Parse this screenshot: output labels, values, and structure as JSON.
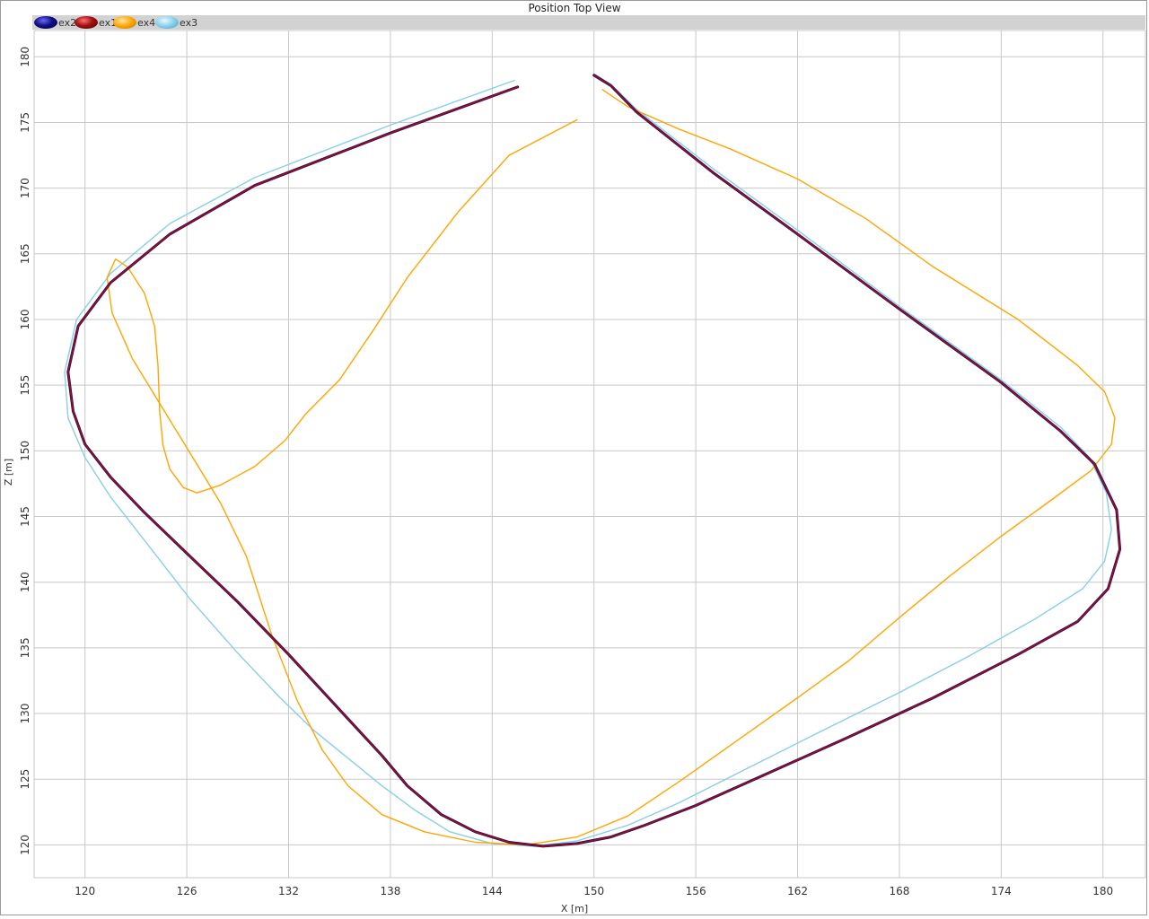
{
  "window": {
    "title": "Position Top View"
  },
  "chart_data": {
    "type": "line",
    "title": "Position Top View",
    "xlabel": "X [m]",
    "ylabel": "Z [m]",
    "xlim": [
      117,
      182.5
    ],
    "ylim": [
      117.5,
      182
    ],
    "xticks": [
      "120",
      "126",
      "132",
      "138",
      "144",
      "150",
      "156",
      "162",
      "168",
      "174",
      "180"
    ],
    "yticks": [
      "120",
      "125",
      "130",
      "135",
      "140",
      "145",
      "150",
      "155",
      "160",
      "165",
      "170",
      "175",
      "180"
    ],
    "grid": true,
    "legend_position": "top-left",
    "series": [
      {
        "name": "ex2",
        "color": "#1a0a6e",
        "width": 3,
        "points": [
          [
            145.5,
            177.7
          ],
          [
            138,
            174.2
          ],
          [
            130,
            170.2
          ],
          [
            125,
            166.5
          ],
          [
            121.5,
            162.8
          ],
          [
            119.6,
            159.5
          ],
          [
            119,
            156
          ],
          [
            119.3,
            153
          ],
          [
            120,
            150.5
          ],
          [
            121.5,
            148
          ],
          [
            123.5,
            145.3
          ],
          [
            126,
            142.2
          ],
          [
            129,
            138.5
          ],
          [
            132,
            134.5
          ],
          [
            135,
            130.3
          ],
          [
            137.5,
            126.8
          ],
          [
            139,
            124.5
          ],
          [
            141,
            122.3
          ],
          [
            143,
            121.0
          ],
          [
            145,
            120.2
          ],
          [
            147,
            119.9
          ],
          [
            149,
            120.1
          ],
          [
            151,
            120.6
          ],
          [
            153,
            121.5
          ],
          [
            156,
            123
          ],
          [
            160,
            125.3
          ],
          [
            165,
            128.2
          ],
          [
            170,
            131.2
          ],
          [
            175,
            134.5
          ],
          [
            178.5,
            137
          ],
          [
            180.3,
            139.5
          ],
          [
            181,
            142.5
          ],
          [
            180.8,
            145.5
          ],
          [
            179.5,
            149
          ],
          [
            177.5,
            151.5
          ],
          [
            174,
            155.2
          ],
          [
            168,
            160.8
          ],
          [
            162,
            166.5
          ],
          [
            157,
            171.2
          ],
          [
            152.5,
            175.8
          ],
          [
            151,
            177.8
          ],
          [
            150,
            178.6
          ]
        ]
      },
      {
        "name": "ex1",
        "color": "#a01010",
        "width": 1.6,
        "points": [
          [
            145.5,
            177.7
          ],
          [
            138,
            174.2
          ],
          [
            130,
            170.2
          ],
          [
            125,
            166.5
          ],
          [
            121.5,
            162.8
          ],
          [
            119.6,
            159.5
          ],
          [
            119,
            156
          ],
          [
            119.3,
            153
          ],
          [
            120,
            150.5
          ],
          [
            121.5,
            148
          ],
          [
            123.5,
            145.3
          ],
          [
            126,
            142.2
          ],
          [
            129,
            138.5
          ],
          [
            132,
            134.5
          ],
          [
            135,
            130.3
          ],
          [
            137.5,
            126.8
          ],
          [
            139,
            124.5
          ],
          [
            141,
            122.3
          ],
          [
            143,
            121.0
          ],
          [
            145,
            120.2
          ],
          [
            147,
            119.9
          ],
          [
            149,
            120.1
          ],
          [
            151,
            120.6
          ],
          [
            153,
            121.5
          ],
          [
            156,
            123
          ],
          [
            160,
            125.3
          ],
          [
            165,
            128.2
          ],
          [
            170,
            131.2
          ],
          [
            175,
            134.5
          ],
          [
            178.5,
            137
          ],
          [
            180.3,
            139.5
          ],
          [
            181,
            142.5
          ],
          [
            180.8,
            145.5
          ],
          [
            179.5,
            149
          ],
          [
            177.5,
            151.5
          ],
          [
            174,
            155.2
          ],
          [
            168,
            160.8
          ],
          [
            162,
            166.5
          ],
          [
            157,
            171.2
          ],
          [
            152.5,
            175.8
          ],
          [
            151,
            177.8
          ],
          [
            150,
            178.6
          ]
        ]
      },
      {
        "name": "ex4",
        "color": "#ffa500",
        "width": 1.4,
        "points": [
          [
            149,
            175.2
          ],
          [
            145,
            172.5
          ],
          [
            142,
            168.2
          ],
          [
            139,
            163.2
          ],
          [
            137,
            159.2
          ],
          [
            135,
            155.4
          ],
          [
            133,
            152.8
          ],
          [
            131.8,
            150.8
          ],
          [
            130,
            148.8
          ],
          [
            128,
            147.4
          ],
          [
            126.6,
            146.8
          ],
          [
            125.8,
            147.2
          ],
          [
            125,
            148.6
          ],
          [
            124.6,
            150.4
          ],
          [
            124.4,
            153
          ],
          [
            124.3,
            156.5
          ],
          [
            124.1,
            159.5
          ],
          [
            123.5,
            162
          ],
          [
            122.5,
            164
          ],
          [
            121.8,
            164.6
          ],
          [
            121.3,
            163.2
          ],
          [
            121.6,
            160.5
          ],
          [
            122.8,
            157
          ],
          [
            124.5,
            153.4
          ],
          [
            126.3,
            149.6
          ],
          [
            128,
            146
          ],
          [
            129.5,
            142
          ],
          [
            131,
            136
          ],
          [
            132.5,
            131
          ],
          [
            134,
            127.2
          ],
          [
            135.5,
            124.5
          ],
          [
            137.5,
            122.3
          ],
          [
            140,
            121
          ],
          [
            143,
            120.2
          ],
          [
            146,
            120.0
          ],
          [
            149,
            120.6
          ],
          [
            152,
            122.2
          ],
          [
            155,
            124.8
          ],
          [
            158.5,
            128
          ],
          [
            162,
            131.2
          ],
          [
            165,
            134
          ],
          [
            168,
            137.3
          ],
          [
            171,
            140.5
          ],
          [
            174,
            143.5
          ],
          [
            177,
            146.3
          ],
          [
            179.3,
            148.5
          ],
          [
            180.5,
            150.5
          ],
          [
            180.7,
            152.5
          ],
          [
            180.1,
            154.5
          ],
          [
            178.5,
            156.5
          ],
          [
            175,
            160
          ],
          [
            170,
            164
          ],
          [
            166,
            167.7
          ],
          [
            162,
            170.7
          ],
          [
            158,
            173
          ],
          [
            155,
            174.5
          ],
          [
            152,
            176.2
          ],
          [
            150.5,
            177.5
          ]
        ]
      },
      {
        "name": "ex3",
        "color": "#87ceeb",
        "width": 1.4,
        "points": [
          [
            145.3,
            178.2
          ],
          [
            138,
            174.8
          ],
          [
            130,
            170.8
          ],
          [
            125,
            167.3
          ],
          [
            121.5,
            163.5
          ],
          [
            119.5,
            160
          ],
          [
            118.8,
            156
          ],
          [
            119,
            152.5
          ],
          [
            120,
            149.5
          ],
          [
            121.5,
            146.5
          ],
          [
            123.8,
            142.7
          ],
          [
            126.2,
            138.7
          ],
          [
            129,
            134.6
          ],
          [
            131.5,
            131.2
          ],
          [
            133.5,
            128.7
          ],
          [
            135.5,
            126.6
          ],
          [
            137.5,
            124.5
          ],
          [
            139.5,
            122.6
          ],
          [
            141.5,
            121.0
          ],
          [
            144,
            120.1
          ],
          [
            146.5,
            119.9
          ],
          [
            149,
            120.3
          ],
          [
            152,
            121.5
          ],
          [
            155,
            123.2
          ],
          [
            159,
            125.8
          ],
          [
            163,
            128.4
          ],
          [
            168,
            131.6
          ],
          [
            172,
            134.3
          ],
          [
            176,
            137.2
          ],
          [
            178.8,
            139.5
          ],
          [
            180.1,
            141.6
          ],
          [
            180.5,
            144
          ],
          [
            180.2,
            146.8
          ],
          [
            179.2,
            149.5
          ],
          [
            177.5,
            151.8
          ],
          [
            174,
            155.4
          ],
          [
            168,
            161
          ],
          [
            162,
            166.8
          ],
          [
            157,
            171.5
          ],
          [
            152.5,
            176
          ],
          [
            151,
            177.9
          ],
          [
            150,
            178.7
          ]
        ]
      }
    ]
  }
}
